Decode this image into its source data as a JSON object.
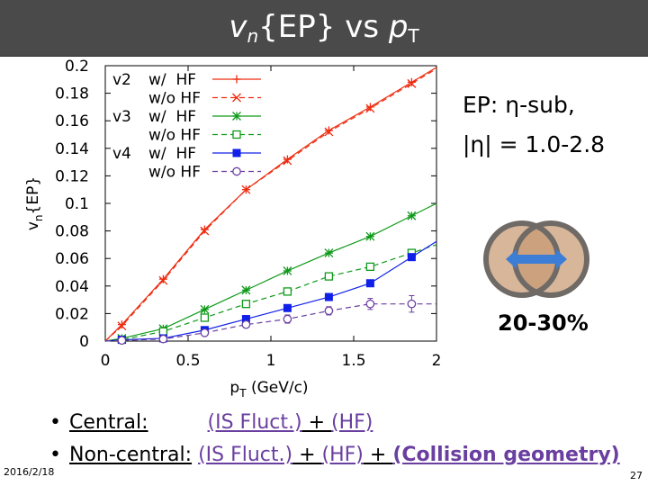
{
  "slide": {
    "title_var": "v",
    "title_sub": "n",
    "title_mid": "{EP} vs ",
    "title_var2": "p",
    "title_sub2": "T",
    "ep_line1": "EP: η-sub,",
    "ep_line2": "|η| = 1.0-2.8",
    "centrality": "20-30%",
    "bullet1_label": "Central:",
    "bullet1_gap": "",
    "bullet1_is": "(IS Fluct.)",
    "bullet1_plus": " + ",
    "bullet1_hf": "(HF)",
    "bullet2_label": "Non-central:",
    "bullet2_is": "(IS Fluct.)",
    "bullet2_plus1": " + ",
    "bullet2_hf": "(HF)",
    "bullet2_plus2": " + ",
    "bullet2_geo": "(Collision geometry)",
    "date": "2016/2/18",
    "page_number": "27"
  },
  "colors": {
    "title_bar": "#4a4a4a",
    "v2": "#ee2c10",
    "v3": "#0f9a1a",
    "v4": "#1020e8",
    "v4_wo": "#6a3fa0",
    "purple_text": "#6a3fa0",
    "nucleus_fill": "#c89a73",
    "nucleus_edge": "#6f6a66",
    "arrow": "#3c7ed6"
  },
  "chart_data": {
    "type": "line",
    "xlabel_main": "p",
    "xlabel_sub": "T",
    "xlabel_rest": " (GeV/c)",
    "ylabel_main": "v",
    "ylabel_sub": "n",
    "ylabel_rest": "{EP}",
    "xlim": [
      0,
      2
    ],
    "ylim": [
      0,
      0.2
    ],
    "xticks": [
      "0",
      "0.5",
      "1",
      "1.5",
      "2"
    ],
    "yticks": [
      "0",
      "0.02",
      "0.04",
      "0.06",
      "0.08",
      "0.1",
      "0.12",
      "0.14",
      "0.16",
      "0.18",
      "0.2"
    ],
    "legend_position": "top-left",
    "legend_groups": [
      {
        "group": "v2",
        "rows": [
          "w/  HF",
          "w/o HF"
        ]
      },
      {
        "group": "v3",
        "rows": [
          "w/  HF",
          "w/o HF"
        ]
      },
      {
        "group": "v4",
        "rows": [
          "w/  HF",
          "w/o HF"
        ]
      }
    ],
    "series": [
      {
        "name": "v2 w/ HF",
        "color": "#ee2c10",
        "marker": "plus",
        "dash": false,
        "x": [
          0.1,
          0.35,
          0.6,
          0.85,
          1.1,
          1.35,
          1.6,
          1.85
        ],
        "y": [
          0.012,
          0.045,
          0.081,
          0.11,
          0.132,
          0.153,
          0.17,
          0.188
        ]
      },
      {
        "name": "v2 w/o HF",
        "color": "#ee2c10",
        "marker": "x",
        "dash": true,
        "x": [
          0.1,
          0.35,
          0.6,
          0.85,
          1.1,
          1.35,
          1.6,
          1.85
        ],
        "y": [
          0.011,
          0.044,
          0.08,
          0.11,
          0.131,
          0.152,
          0.169,
          0.187
        ]
      },
      {
        "name": "v3 w/ HF",
        "color": "#0f9a1a",
        "marker": "star",
        "dash": false,
        "x": [
          0.1,
          0.35,
          0.6,
          0.85,
          1.1,
          1.35,
          1.6,
          1.85
        ],
        "y": [
          0.002,
          0.009,
          0.023,
          0.037,
          0.051,
          0.064,
          0.076,
          0.091
        ]
      },
      {
        "name": "v3 w/o HF",
        "color": "#0f9a1a",
        "marker": "open-square",
        "dash": true,
        "x": [
          0.1,
          0.35,
          0.6,
          0.85,
          1.1,
          1.35,
          1.6,
          1.85
        ],
        "y": [
          0.001,
          0.007,
          0.017,
          0.027,
          0.036,
          0.047,
          0.054,
          0.064
        ]
      },
      {
        "name": "v4 w/ HF",
        "color": "#1020e8",
        "marker": "filled-square",
        "dash": false,
        "x": [
          0.1,
          0.35,
          0.6,
          0.85,
          1.1,
          1.35,
          1.6,
          1.85
        ],
        "y": [
          0.001,
          0.002,
          0.008,
          0.016,
          0.024,
          0.032,
          0.042,
          0.061
        ]
      },
      {
        "name": "v4 w/o HF",
        "color": "#6a3fa0",
        "marker": "open-circle",
        "dash": true,
        "x": [
          0.1,
          0.35,
          0.6,
          0.85,
          1.1,
          1.35,
          1.6,
          1.85
        ],
        "y": [
          0.0005,
          0.0015,
          0.006,
          0.012,
          0.016,
          0.022,
          0.027,
          0.027
        ],
        "yerr": [
          0.001,
          0.001,
          0.002,
          0.002,
          0.003,
          0.003,
          0.004,
          0.006
        ]
      }
    ]
  }
}
